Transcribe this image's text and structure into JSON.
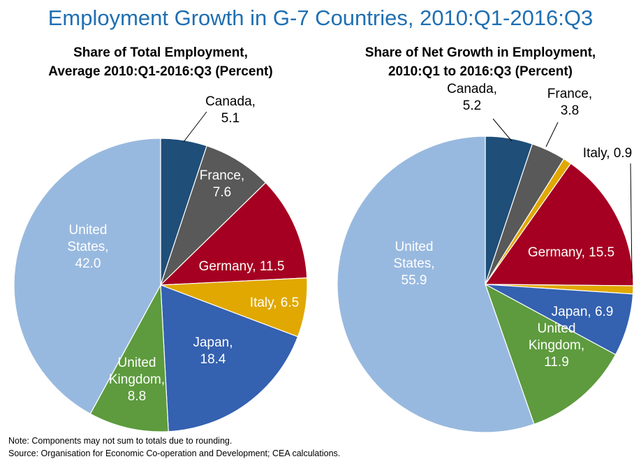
{
  "title": "Employment Growth in G-7 Countries, 2010:Q1-2016:Q3",
  "note": "Note: Components may not sum to totals due to rounding.",
  "source": "Source: Organisation for Economic Co-operation and Development; CEA calculations.",
  "colors": {
    "Canada": "#1f4e79",
    "France": "#595959",
    "Germany": "#a50021",
    "Italy": "#e0a800",
    "Japan": "#3461b0",
    "United Kingdom": "#5d9b3e",
    "United States": "#98b9df"
  },
  "chart_data": [
    {
      "type": "pie",
      "title": "Share of Total Employment,",
      "subtitle": "Average 2010:Q1-2016:Q3 (Percent)",
      "slices": [
        {
          "name": "Canada",
          "value": 5.1,
          "label_lines": [
            "Canada,",
            "5.1"
          ]
        },
        {
          "name": "France",
          "value": 7.6,
          "label_lines": [
            "France,",
            "7.6"
          ]
        },
        {
          "name": "Germany",
          "value": 11.5,
          "label_lines": [
            "Germany, 11.5"
          ]
        },
        {
          "name": "Italy",
          "value": 6.5,
          "label_lines": [
            "Italy, 6.5"
          ]
        },
        {
          "name": "Japan",
          "value": 18.4,
          "label_lines": [
            "Japan,",
            "18.4"
          ]
        },
        {
          "name": "United Kingdom",
          "value": 8.8,
          "label_lines": [
            "United",
            "Kingdom,",
            "8.8"
          ]
        },
        {
          "name": "United States",
          "value": 42.0,
          "label_lines": [
            "United",
            "States,",
            "42.0"
          ]
        }
      ]
    },
    {
      "type": "pie",
      "title": "Share of Net Growth in Employment,",
      "subtitle": "2010:Q1 to 2016:Q3 (Percent)",
      "slices": [
        {
          "name": "Canada",
          "value": 5.2,
          "label_lines": [
            "Canada,",
            "5.2"
          ]
        },
        {
          "name": "France",
          "value": 3.8,
          "label_lines": [
            "France,",
            "3.8"
          ]
        },
        {
          "name": "Italy",
          "value": 0.9,
          "label_lines": [
            "Italy, 0.9"
          ]
        },
        {
          "name": "Germany",
          "value": 15.5,
          "label_lines": [
            "Germany, 15.5"
          ]
        },
        {
          "name": "Italy",
          "value": 0.9,
          "label_lines": []
        },
        {
          "name": "Japan",
          "value": 6.9,
          "label_lines": [
            "Japan, 6.9"
          ]
        },
        {
          "name": "United Kingdom",
          "value": 11.9,
          "label_lines": [
            "United",
            "Kingdom,",
            "11.9"
          ]
        },
        {
          "name": "United States",
          "value": 55.9,
          "label_lines": [
            "United",
            "States,",
            "55.9"
          ]
        }
      ]
    }
  ]
}
